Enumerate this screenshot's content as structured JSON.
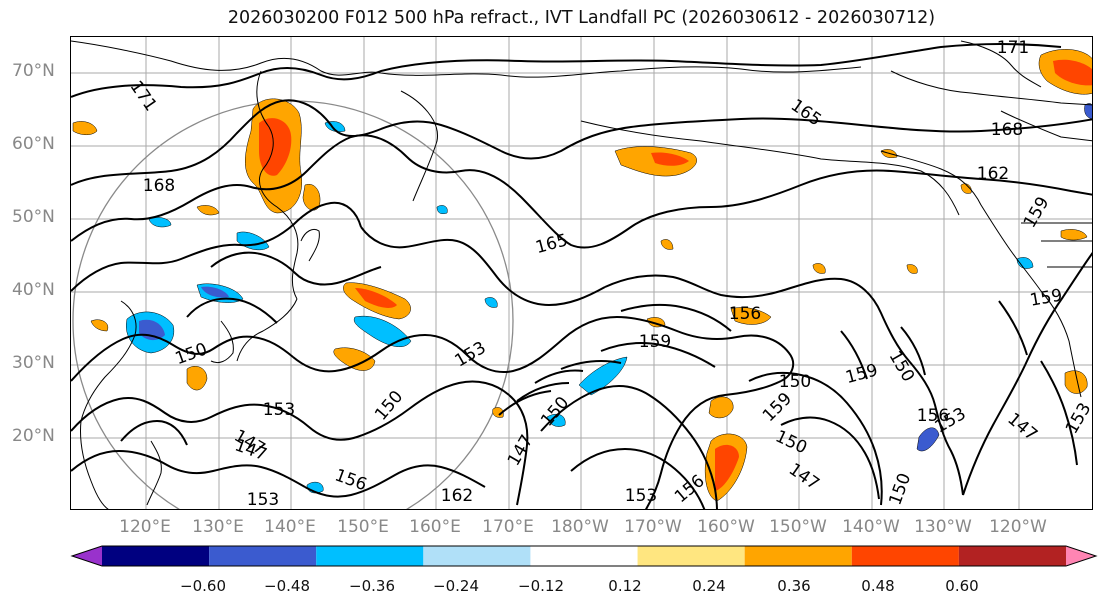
{
  "title": "2026030200 F012 500 hPa refract., IVT Landfall PC (2026030612 - 2026030712)",
  "map": {
    "lat_labels": [
      "70°N",
      "60°N",
      "50°N",
      "40°N",
      "30°N",
      "20°N"
    ],
    "lon_labels": [
      "120°E",
      "130°E",
      "140°E",
      "150°E",
      "160°E",
      "170°E",
      "180°W",
      "170°W",
      "160°W",
      "150°W",
      "140°W",
      "130°W",
      "120°W"
    ],
    "contour_labels": [
      "171",
      "168",
      "165",
      "162",
      "159",
      "156",
      "153",
      "150",
      "147",
      "162",
      "168",
      "171",
      "165",
      "159",
      "156",
      "153",
      "150",
      "147",
      "159",
      "153",
      "150",
      "147",
      "153",
      "150",
      "156",
      "159",
      "150",
      "147",
      "156",
      "153",
      "159",
      "150",
      "153",
      "150",
      "147"
    ]
  },
  "colorbar": {
    "colors": [
      "#9932cc",
      "#000080",
      "#3b5bcf",
      "#00bfff",
      "#b0e0f8",
      "#ffffff",
      "#ffe680",
      "#ffa500",
      "#ff4500",
      "#b22222",
      "#ff85b3"
    ],
    "ticks": [
      "−0.60",
      "−0.48",
      "−0.36",
      "−0.24",
      "−0.12",
      "0.12",
      "0.24",
      "0.36",
      "0.48",
      "0.60"
    ]
  }
}
